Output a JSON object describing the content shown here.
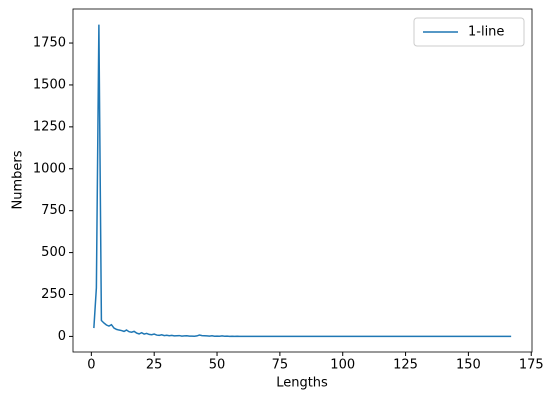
{
  "chart_data": {
    "type": "line",
    "xlabel": "Lengths",
    "ylabel": "Numbers",
    "x": [
      1,
      2,
      3,
      4,
      5,
      6,
      7,
      8,
      9,
      10,
      11,
      12,
      13,
      14,
      15,
      16,
      17,
      18,
      19,
      20,
      21,
      22,
      23,
      24,
      25,
      26,
      27,
      28,
      29,
      30,
      31,
      32,
      33,
      34,
      35,
      36,
      37,
      38,
      39,
      40,
      41,
      42,
      43,
      44,
      45,
      46,
      47,
      48,
      49,
      50,
      51,
      52,
      53,
      54,
      55,
      56,
      57,
      58,
      59,
      60,
      70,
      80,
      90,
      100,
      110,
      120,
      130,
      140,
      150,
      160,
      167
    ],
    "series": [
      {
        "name": "1-line",
        "color": "#1f77b4",
        "values": [
          50,
          290,
          1860,
          95,
          80,
          68,
          62,
          70,
          50,
          42,
          38,
          35,
          30,
          38,
          28,
          25,
          30,
          20,
          15,
          22,
          14,
          18,
          12,
          10,
          14,
          8,
          6,
          10,
          5,
          7,
          4,
          6,
          3,
          4,
          5,
          2,
          3,
          4,
          2,
          2,
          1,
          3,
          8,
          5,
          4,
          3,
          2,
          4,
          1,
          2,
          1,
          3,
          1,
          2,
          0,
          1,
          0,
          1,
          0,
          0,
          0,
          0,
          0,
          0,
          0,
          0,
          0,
          0,
          0,
          0,
          0
        ]
      }
    ],
    "xlim": [
      -7.3,
      175.3
    ],
    "ylim": [
      -93,
      1953
    ],
    "xticks": [
      0,
      25,
      50,
      75,
      100,
      125,
      150,
      175
    ],
    "yticks": [
      0,
      250,
      500,
      750,
      1000,
      1250,
      1500,
      1750
    ],
    "legend": "upper right"
  }
}
